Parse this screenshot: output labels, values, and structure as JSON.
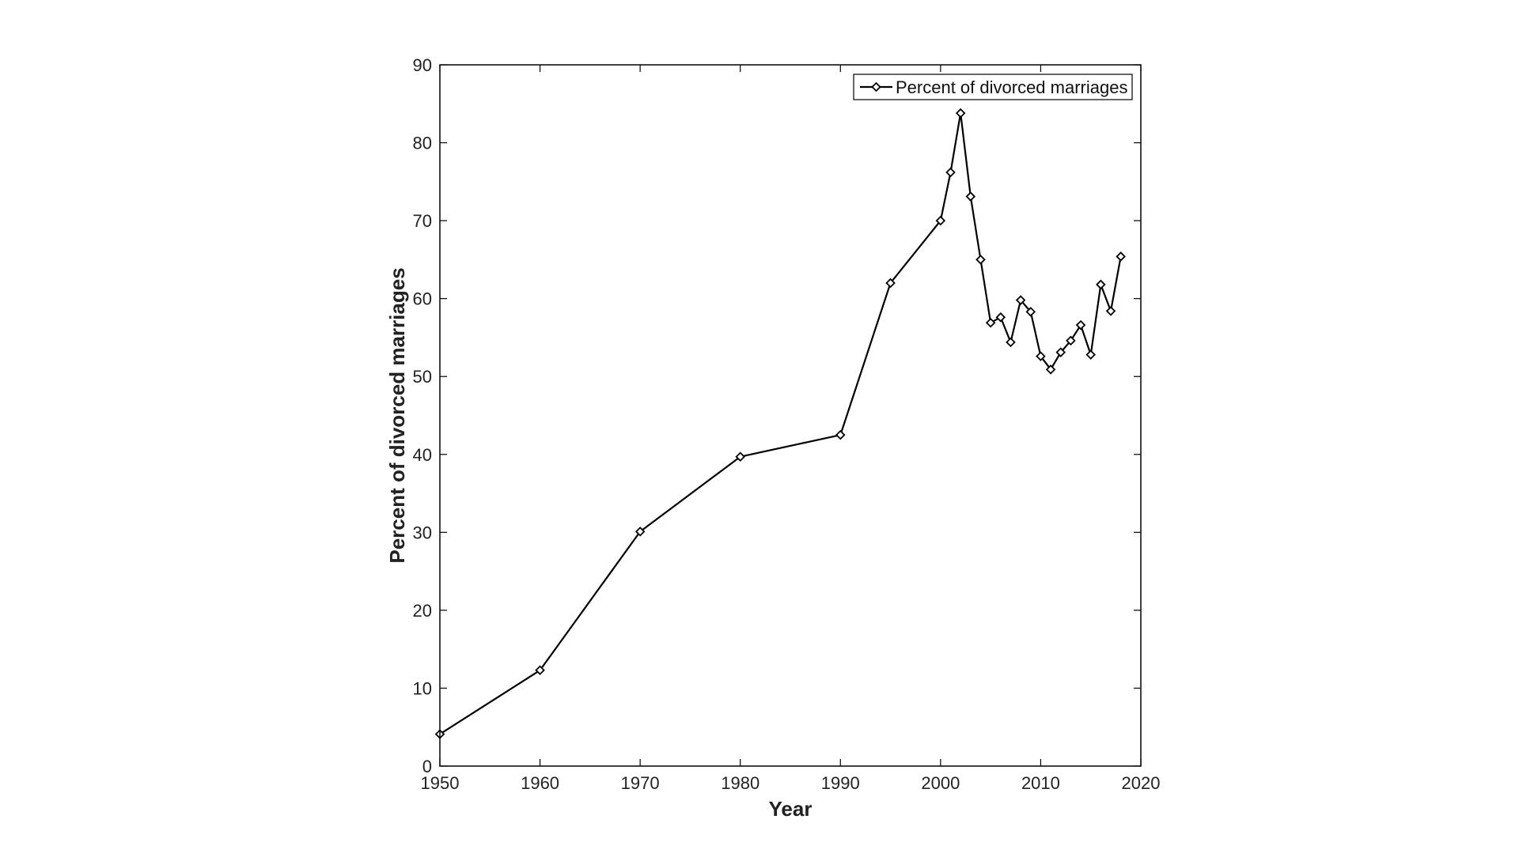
{
  "chart_data": {
    "type": "line",
    "title": "",
    "xlabel": "Year",
    "ylabel": "Percent of divorced marriages",
    "xlim": [
      1950,
      2020
    ],
    "ylim": [
      0,
      90
    ],
    "xticks": [
      1950,
      1960,
      1970,
      1980,
      1990,
      2000,
      2010,
      2020
    ],
    "yticks": [
      0,
      10,
      20,
      30,
      40,
      50,
      60,
      70,
      80,
      90
    ],
    "grid": false,
    "legend_position": "top-right",
    "series": [
      {
        "name": "Percent of divorced marriages",
        "color": "#000000",
        "marker": "diamond",
        "x": [
          1950,
          1960,
          1970,
          1980,
          1990,
          1995,
          2000,
          2001,
          2002,
          2003,
          2004,
          2005,
          2006,
          2007,
          2008,
          2009,
          2010,
          2011,
          2012,
          2013,
          2014,
          2015,
          2016,
          2017,
          2018
        ],
        "y": [
          4.1,
          12.3,
          30.1,
          39.7,
          42.5,
          62.0,
          70.0,
          76.2,
          83.8,
          73.1,
          65.0,
          56.9,
          57.6,
          54.4,
          59.8,
          58.3,
          52.6,
          50.9,
          53.1,
          54.6,
          56.6,
          52.8,
          61.8,
          58.4,
          65.4
        ]
      }
    ]
  }
}
